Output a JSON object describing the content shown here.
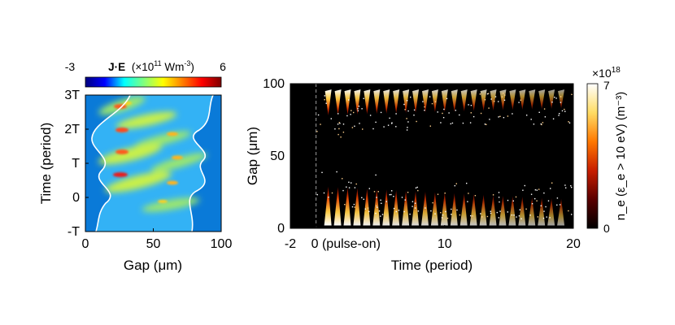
{
  "chart_data": [
    {
      "type": "heatmap",
      "xlabel": "Gap (μm)",
      "ylabel": "Time (period)",
      "xlim": [
        0,
        100
      ],
      "ylim": [
        -1,
        3
      ],
      "x_ticks": [
        {
          "value": 0,
          "label": "0"
        },
        {
          "value": 50,
          "label": "50"
        },
        {
          "value": 100,
          "label": "100"
        }
      ],
      "y_ticks": [
        {
          "value": -1,
          "label": "-T"
        },
        {
          "value": 0,
          "label": "0"
        },
        {
          "value": 1,
          "label": "T"
        },
        {
          "value": 2,
          "label": "2T"
        },
        {
          "value": 3,
          "label": "3T"
        }
      ],
      "colorbar": {
        "position": "top",
        "title": "J·E (×10¹¹ Wm⁻³)",
        "title_quantity": "J·E",
        "title_prefix": "(×10",
        "title_exp": "11",
        "title_unit": " Wm",
        "title_unit_exp": "-3",
        "title_suffix": ")",
        "min": -3,
        "max": 6,
        "min_label": "-3",
        "max_label": "6",
        "colormap": [
          "#00007f",
          "#0000ff",
          "#00ffff",
          "#7fff7f",
          "#ffff00",
          "#ff7f00",
          "#ff0000",
          "#7f0000"
        ]
      },
      "background_color": "#33b2f5",
      "sheath_color": "#0a7ad8",
      "sheath_boundary_color": "#ffffff"
    },
    {
      "type": "heatmap",
      "xlabel": "Time (period)",
      "ylabel": "Gap (μm)",
      "xlim": [
        -2,
        20
      ],
      "ylim": [
        0,
        100
      ],
      "x_ticks": [
        {
          "value": -2,
          "label": "-2"
        },
        {
          "value": 0,
          "label": "0 (pulse-on)"
        },
        {
          "value": 10,
          "label": "10"
        },
        {
          "value": 20,
          "label": "20"
        }
      ],
      "y_ticks": [
        {
          "value": 0,
          "label": "0"
        },
        {
          "value": 50,
          "label": "50"
        },
        {
          "value": 100,
          "label": "100"
        }
      ],
      "pulse_on_marker": 0,
      "colorbar": {
        "position": "right",
        "title": "n_e (ε_e > 10 eV) (m⁻³)",
        "scale_label": "×10¹⁸",
        "scale_prefix": "×10",
        "scale_exp": "18",
        "min": 0,
        "max": 7,
        "min_label": "0",
        "max_label": "7",
        "colormap": [
          "#000000",
          "#5a0000",
          "#c81e00",
          "#ff7800",
          "#ffdc64",
          "#ffffff"
        ]
      },
      "background_color": "#000000"
    }
  ]
}
